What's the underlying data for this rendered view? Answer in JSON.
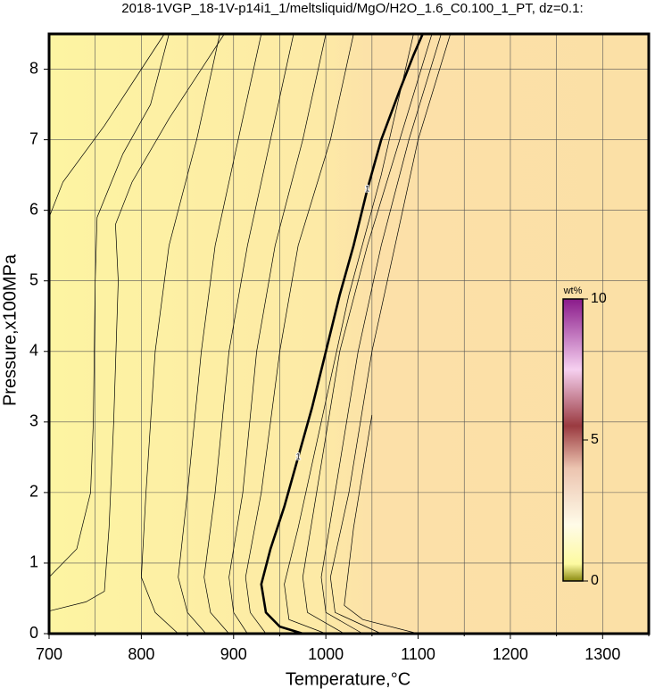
{
  "chart_data": {
    "type": "contour",
    "title": "2018-1VGP_18-1V-p14i1_1/meltsliquid/MgO/H2O_1.6_C0.100_1_PT, dz=0.1:",
    "xlabel": "Temperature,°C",
    "ylabel": "Pressure,x100MPa",
    "xlim": [
      700,
      1350
    ],
    "ylim": [
      0,
      8.5
    ],
    "xticks": [
      700,
      800,
      900,
      1000,
      1100,
      1200,
      1300
    ],
    "xminor": [
      750,
      850,
      950,
      1050,
      1150,
      1250,
      1350
    ],
    "yticks": [
      0,
      1,
      2,
      3,
      4,
      5,
      6,
      7,
      8
    ],
    "grid": true,
    "contours": [
      {
        "x": [
          700,
          740,
          760,
          765,
          770,
          775,
          772,
          790,
          830,
          870,
          890
        ],
        "y": [
          0.32,
          0.45,
          0.6,
          1.5,
          3,
          5,
          5.8,
          6.4,
          7.3,
          8.1,
          8.5
        ]
      },
      {
        "x": [
          700,
          730,
          745,
          748,
          750,
          752,
          780,
          810,
          830
        ],
        "y": [
          0.8,
          1.2,
          2.0,
          3,
          5,
          5.9,
          6.8,
          7.5,
          8.5
        ]
      },
      {
        "x": [
          700,
          715,
          760,
          800,
          825
        ],
        "y": [
          5.9,
          6.4,
          7.2,
          8.0,
          8.5
        ]
      },
      {
        "x": [
          840,
          815,
          800,
          805,
          815,
          830,
          860,
          885
        ],
        "y": [
          0,
          0.3,
          0.8,
          2,
          4,
          5.5,
          7,
          8.5
        ]
      },
      {
        "x": [
          870,
          850,
          840,
          850,
          865,
          880,
          905,
          930
        ],
        "y": [
          0,
          0.3,
          0.8,
          2,
          4,
          5.5,
          7,
          8.5
        ]
      },
      {
        "x": [
          895,
          875,
          868,
          880,
          895,
          915,
          940,
          965
        ],
        "y": [
          0,
          0.3,
          0.8,
          2,
          4,
          5.5,
          7,
          8.5
        ]
      },
      {
        "x": [
          915,
          900,
          895,
          910,
          925,
          945,
          975,
          1000
        ],
        "y": [
          0,
          0.3,
          0.8,
          2,
          4,
          5.5,
          7,
          8.5
        ]
      },
      {
        "x": [
          935,
          918,
          913,
          930,
          950,
          970,
          1005,
          1030
        ],
        "y": [
          0,
          0.3,
          0.8,
          2,
          4,
          5.5,
          7,
          8.5
        ]
      },
      {
        "level": 1,
        "x": [
          975,
          950,
          935,
          930,
          940,
          955,
          970,
          985,
          1000,
          1015,
          1030,
          1045,
          1060,
          1080,
          1095,
          1105
        ],
        "y": [
          0,
          0.1,
          0.3,
          0.7,
          1.2,
          1.8,
          2.5,
          3.2,
          4,
          4.8,
          5.5,
          6.3,
          7,
          7.7,
          8.2,
          8.5
        ]
      },
      {
        "x": [
          1000,
          960,
          955,
          970,
          995,
          1025,
          1060,
          1095
        ],
        "y": [
          0,
          0.2,
          0.7,
          1.5,
          3,
          4.8,
          6.5,
          8.5
        ]
      },
      {
        "x": [
          1020,
          980,
          975,
          990,
          1015,
          1045,
          1080,
          1115
        ],
        "y": [
          0,
          0.3,
          0.8,
          2,
          4,
          5.5,
          7,
          8.5
        ]
      },
      {
        "x": [
          1040,
          1000,
          995,
          1010,
          1035,
          1060,
          1090,
          1125
        ],
        "y": [
          0,
          0.3,
          0.8,
          2,
          4,
          5.5,
          7,
          8.5
        ]
      },
      {
        "x": [
          1060,
          1010,
          1005,
          1025,
          1050,
          1075,
          1100,
          1135
        ],
        "y": [
          0,
          0.3,
          0.8,
          2,
          4,
          5.5,
          7,
          8.5
        ]
      },
      {
        "x": [
          1100,
          1040,
          1020,
          1030,
          1050
        ],
        "y": [
          0,
          0.2,
          0.4,
          1.5,
          3.1
        ]
      }
    ],
    "colorbar": {
      "label": "wt%",
      "clim": [
        0,
        10
      ],
      "ticks": [
        0,
        5,
        10
      ]
    }
  }
}
